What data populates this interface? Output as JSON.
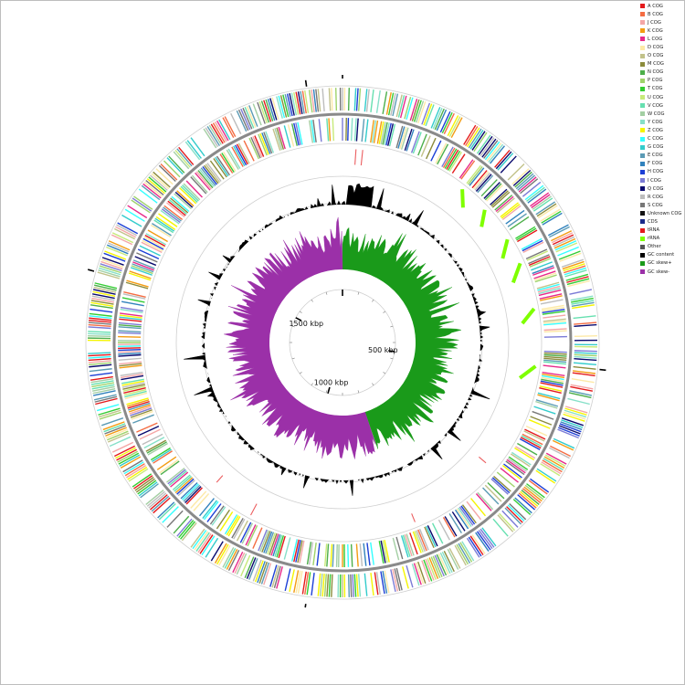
{
  "map": {
    "ticks": [
      {
        "label": "500 kbp",
        "angle_deg": 100
      },
      {
        "label": "1000 kbp",
        "angle_deg": 196
      },
      {
        "label": "1500 kbp",
        "angle_deg": 298
      }
    ]
  },
  "legend": [
    {
      "label": "A COG",
      "color": "#e41a1c"
    },
    {
      "label": "B COG",
      "color": "#f46d43"
    },
    {
      "label": "J COG",
      "color": "#f4a6a6"
    },
    {
      "label": "K COG",
      "color": "#f39c12"
    },
    {
      "label": "L COG",
      "color": "#e7298a"
    },
    {
      "label": "D COG",
      "color": "#fde9a6"
    },
    {
      "label": "O COG",
      "color": "#c2c28a"
    },
    {
      "label": "M COG",
      "color": "#8c8c3c"
    },
    {
      "label": "N COG",
      "color": "#4daf4a"
    },
    {
      "label": "P COG",
      "color": "#9fd36b"
    },
    {
      "label": "T COG",
      "color": "#33cc33"
    },
    {
      "label": "U COG",
      "color": "#c7ea7a"
    },
    {
      "label": "V COG",
      "color": "#66e0b0"
    },
    {
      "label": "W COG",
      "color": "#a3cfa3"
    },
    {
      "label": "Y COG",
      "color": "#86e0c8"
    },
    {
      "label": "Z COG",
      "color": "#f5f500"
    },
    {
      "label": "C COG",
      "color": "#33ffff"
    },
    {
      "label": "G COG",
      "color": "#33cccc"
    },
    {
      "label": "E COG",
      "color": "#5b9bb5"
    },
    {
      "label": "F COG",
      "color": "#3182bd"
    },
    {
      "label": "H COG",
      "color": "#1c3fd6"
    },
    {
      "label": "I COG",
      "color": "#7b7bd6"
    },
    {
      "label": "Q COG",
      "color": "#0a0a6e"
    },
    {
      "label": "R COG",
      "color": "#bdbdbd"
    },
    {
      "label": "S COG",
      "color": "#777777"
    },
    {
      "label": "Unknown COG",
      "color": "#111111"
    },
    {
      "label": "CDS",
      "color": "#1a2a8a"
    },
    {
      "label": "tRNA",
      "color": "#e31a1c"
    },
    {
      "label": "rRNA",
      "color": "#7fff00"
    },
    {
      "label": "Other",
      "color": "#555555"
    },
    {
      "label": "GC content",
      "color": "#000000"
    },
    {
      "label": "GC skew+",
      "color": "#1a9a1a"
    },
    {
      "label": "GC skew-",
      "color": "#9b30a8"
    }
  ]
}
